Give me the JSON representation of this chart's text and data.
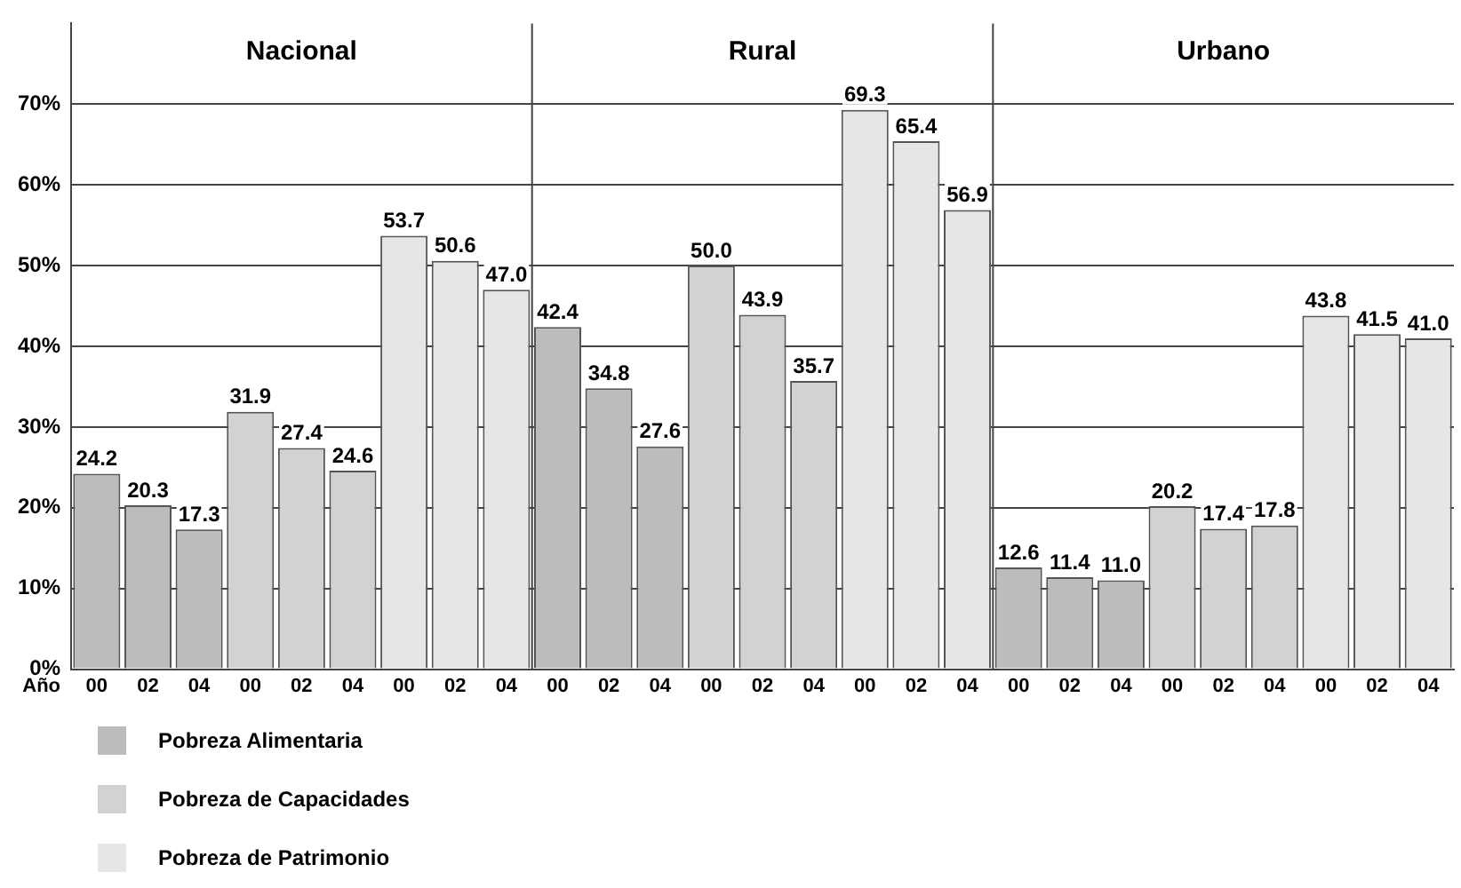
{
  "chart_data": {
    "type": "bar",
    "stacked": true,
    "xlabel": "Año",
    "categories": [
      "00",
      "02",
      "04",
      "00",
      "02",
      "04",
      "00",
      "02",
      "04",
      "00",
      "02",
      "04",
      "00",
      "02",
      "04",
      "00",
      "02",
      "04",
      "00",
      "02",
      "04",
      "00",
      "02",
      "04",
      "00",
      "02",
      "04"
    ],
    "series": [
      {
        "name": "Pobreza Alimentaria",
        "color": "#bcbcbc",
        "values": [
          24.2,
          20.3,
          17.3,
          null,
          null,
          null,
          null,
          null,
          null,
          42.4,
          34.8,
          27.6,
          null,
          null,
          null,
          null,
          null,
          null,
          12.6,
          11.4,
          11.0,
          null,
          null,
          null,
          null,
          null,
          null
        ],
        "value_labels": [
          "24.2",
          "20.3",
          "17.3",
          null,
          null,
          null,
          null,
          null,
          null,
          "42.4",
          "34.8",
          "27.6",
          null,
          null,
          null,
          null,
          null,
          null,
          "12.6",
          "11.4",
          "11.0",
          null,
          null,
          null,
          null,
          null,
          null
        ]
      },
      {
        "name": "Pobreza de Capacidades",
        "color": "#d2d2d2",
        "values": [
          null,
          null,
          null,
          31.9,
          27.4,
          24.6,
          null,
          null,
          null,
          null,
          null,
          null,
          50.0,
          43.9,
          35.7,
          null,
          null,
          null,
          null,
          null,
          null,
          20.2,
          17.4,
          17.8,
          null,
          null,
          null
        ],
        "value_labels": [
          null,
          null,
          null,
          "31.9",
          "27.4",
          "24.6",
          null,
          null,
          null,
          null,
          null,
          null,
          "50.0",
          "43.9",
          "35.7",
          null,
          null,
          null,
          null,
          null,
          null,
          "20.2",
          "17.4",
          "17.8",
          null,
          null,
          null
        ]
      },
      {
        "name": "Pobreza de Patrimonio",
        "color": "#e6e6e6",
        "values": [
          null,
          null,
          null,
          null,
          null,
          null,
          53.7,
          50.6,
          47.0,
          null,
          null,
          null,
          null,
          null,
          null,
          69.3,
          65.4,
          56.9,
          null,
          null,
          null,
          null,
          null,
          null,
          43.8,
          41.5,
          41.0
        ],
        "value_labels": [
          null,
          null,
          null,
          null,
          null,
          null,
          "53.7",
          "50.6",
          "47.0",
          null,
          null,
          null,
          null,
          null,
          null,
          "69.3",
          "65.4",
          "56.9",
          null,
          null,
          null,
          null,
          null,
          null,
          "43.8",
          "41.5",
          "41.0"
        ]
      }
    ],
    "annotations": [
      "Nacional",
      "Rural",
      "Urbano"
    ],
    "ylim": [
      0,
      80
    ],
    "yticks": [
      {
        "value": 0,
        "label": "0%"
      },
      {
        "value": 10,
        "label": "10%"
      },
      {
        "value": 20,
        "label": "20%"
      },
      {
        "value": 30,
        "label": "30%"
      },
      {
        "value": 40,
        "label": "40%"
      },
      {
        "value": 50,
        "label": "50%"
      },
      {
        "value": 60,
        "label": "60%"
      },
      {
        "value": 70,
        "label": "70%"
      }
    ],
    "grid": "y",
    "legend": "bottom"
  }
}
